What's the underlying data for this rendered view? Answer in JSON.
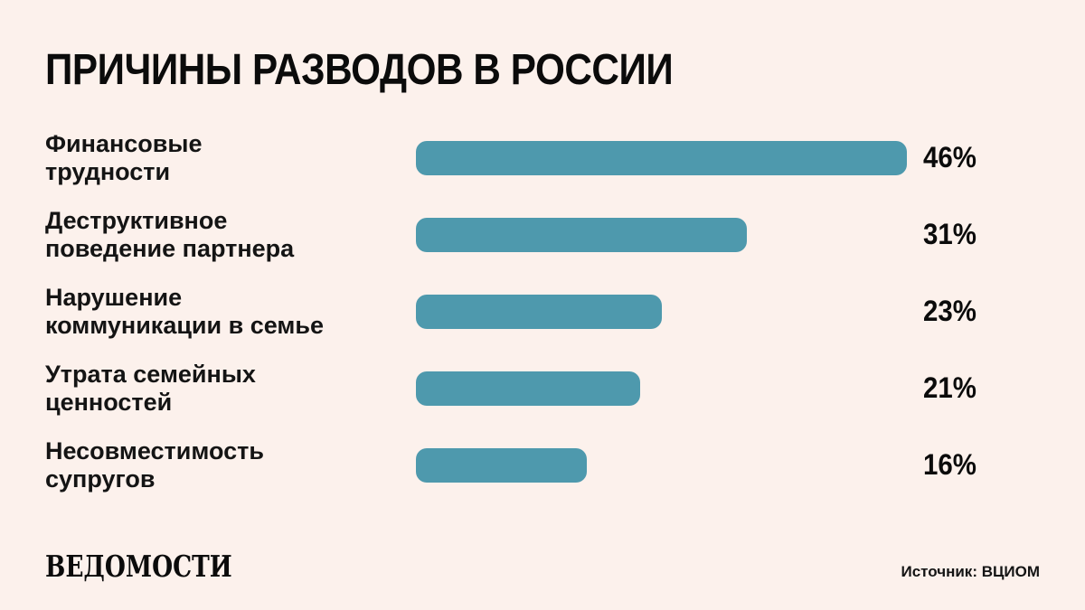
{
  "title": "ПРИЧИНЫ РАЗВОДОВ В РОССИИ",
  "chart_data": {
    "type": "bar",
    "orientation": "horizontal",
    "title": "ПРИЧИНЫ РАЗВОДОВ В РОССИИ",
    "categories": [
      "Финансовые трудности",
      "Деструктивное поведение партнера",
      "Нарушение коммуникации в семье",
      "Утрата семейных ценностей",
      "Несовместимость супругов"
    ],
    "category_lines": [
      [
        "Финансовые",
        "трудности"
      ],
      [
        "Деструктивное",
        "поведение партнера"
      ],
      [
        "Нарушение",
        "коммуникации в семье"
      ],
      [
        "Утрата семейных",
        "ценностей"
      ],
      [
        "Несовместимость",
        "супругов"
      ]
    ],
    "values": [
      46,
      31,
      23,
      21,
      16
    ],
    "value_labels": [
      "46%",
      "31%",
      "23%",
      "21%",
      "16%"
    ],
    "xlim": [
      0,
      46
    ],
    "grid": false,
    "legend": false,
    "bar_color": "#4e99ad",
    "background_color": "#fcf1ec",
    "text_color": "#0d0d0d"
  },
  "footer": {
    "brand": "ВЕДОМОСТИ",
    "source": "Источник: ВЦИОМ"
  }
}
